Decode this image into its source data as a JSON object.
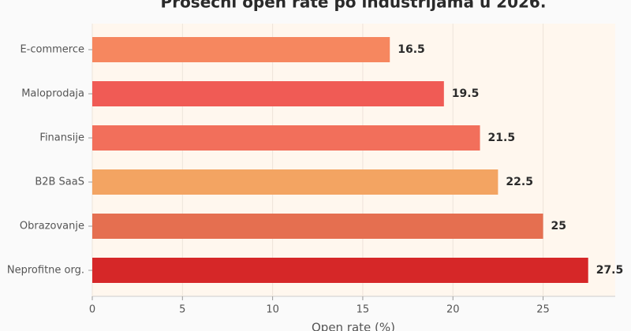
{
  "chart_data": {
    "type": "barh",
    "title": "Prosečni open rate po industrijama u 2026.",
    "x_label": "Open rate (%)",
    "categories": [
      "E-commerce",
      "Maloprodaja",
      "Finansije",
      "B2B SaaS",
      "Obrazovanje",
      "Neprofitne org."
    ],
    "values": [
      16.5,
      19.5,
      21.5,
      22.5,
      25,
      27.5
    ],
    "colors": [
      "#f6875f",
      "#f05b55",
      "#f26f5b",
      "#f3a462",
      "#e56f50",
      "#d62728"
    ],
    "xlim": [
      0,
      29
    ],
    "xticks": [
      0,
      5,
      10,
      15,
      20,
      25
    ],
    "grid": true
  }
}
